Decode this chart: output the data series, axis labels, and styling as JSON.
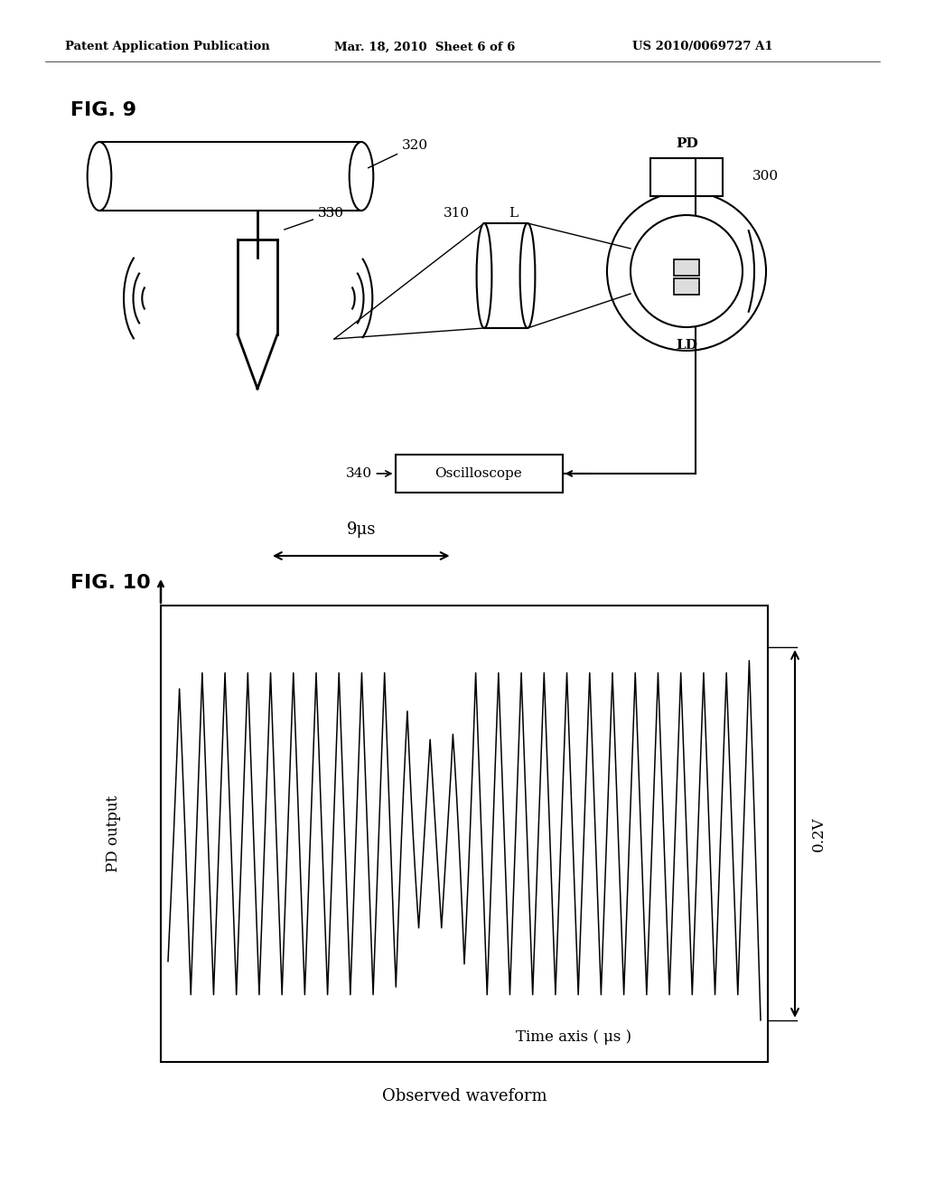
{
  "background_color": "#ffffff",
  "header_left": "Patent Application Publication",
  "header_center": "Mar. 18, 2010  Sheet 6 of 6",
  "header_right": "US 2010/0069727 A1",
  "fig9_label": "FIG. 9",
  "fig10_label": "FIG. 10",
  "label_320": "320",
  "label_330": "330",
  "label_300": "300",
  "label_LD": "LD",
  "label_310": "310",
  "label_L": "L",
  "label_PD": "PD",
  "label_340": "340",
  "label_oscilloscope": "Oscilloscope",
  "fig10_ylabel": "PD output",
  "fig10_xlabel": "Time axis ( μs )",
  "fig10_caption": "Observed waveform",
  "fig10_9us": "9μs",
  "fig10_02v": "0.2V"
}
